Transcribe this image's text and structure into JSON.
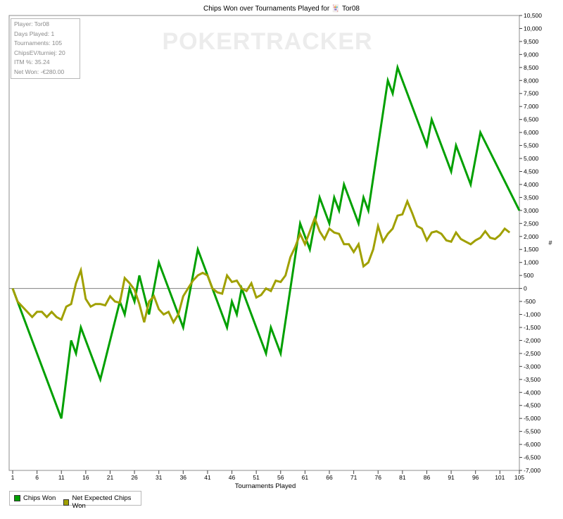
{
  "chart_data": {
    "type": "line",
    "title": "Chips Won over Tournaments Played for 🃏 Tor08",
    "xlabel": "Tournaments Played",
    "ylabel": "#",
    "xlim": [
      1,
      105
    ],
    "ylim": [
      -7000,
      10500
    ],
    "y_tick_step": 500,
    "x_ticks": [
      1,
      6,
      11,
      16,
      21,
      26,
      31,
      36,
      41,
      46,
      51,
      56,
      61,
      66,
      71,
      76,
      81,
      86,
      91,
      96,
      101,
      105
    ],
    "grid": false,
    "legend_position": "bottom-left",
    "watermark": "POKERTRACKER",
    "series": [
      {
        "name": "Chips Won",
        "color": "#00a000",
        "points": [
          [
            1,
            0
          ],
          [
            11,
            -5000
          ],
          [
            13,
            -2000
          ],
          [
            14,
            -2500
          ],
          [
            15,
            -1500
          ],
          [
            19,
            -3500
          ],
          [
            23,
            -500
          ],
          [
            24,
            -1000
          ],
          [
            25,
            0
          ],
          [
            26,
            -500
          ],
          [
            27,
            500
          ],
          [
            29,
            -1000
          ],
          [
            31,
            1000
          ],
          [
            36,
            -1500
          ],
          [
            39,
            1500
          ],
          [
            45,
            -1500
          ],
          [
            46,
            -500
          ],
          [
            47,
            -1000
          ],
          [
            48,
            0
          ],
          [
            53,
            -2500
          ],
          [
            54,
            -1500
          ],
          [
            56,
            -2500
          ],
          [
            60,
            2500
          ],
          [
            62,
            1500
          ],
          [
            64,
            3500
          ],
          [
            66,
            2500
          ],
          [
            67,
            3500
          ],
          [
            68,
            3000
          ],
          [
            69,
            4000
          ],
          [
            72,
            2500
          ],
          [
            73,
            3500
          ],
          [
            74,
            3000
          ],
          [
            78,
            8000
          ],
          [
            79,
            7500
          ],
          [
            80,
            8500
          ],
          [
            86,
            5500
          ],
          [
            87,
            6500
          ],
          [
            91,
            4500
          ],
          [
            92,
            5500
          ],
          [
            95,
            4000
          ],
          [
            97,
            6000
          ],
          [
            105,
            3000
          ]
        ]
      },
      {
        "name": "Net Expected Chips Won",
        "color": "#a0a000",
        "points": [
          [
            1,
            0
          ],
          [
            2,
            -500
          ],
          [
            5,
            -1100
          ],
          [
            6,
            -900
          ],
          [
            7,
            -900
          ],
          [
            8,
            -1100
          ],
          [
            9,
            -900
          ],
          [
            10,
            -1100
          ],
          [
            11,
            -1200
          ],
          [
            12,
            -700
          ],
          [
            13,
            -600
          ],
          [
            14,
            200
          ],
          [
            15,
            700
          ],
          [
            16,
            -400
          ],
          [
            17,
            -700
          ],
          [
            18,
            -600
          ],
          [
            19,
            -600
          ],
          [
            20,
            -650
          ],
          [
            21,
            -300
          ],
          [
            22,
            -500
          ],
          [
            23,
            -550
          ],
          [
            24,
            400
          ],
          [
            25,
            200
          ],
          [
            26,
            -50
          ],
          [
            27,
            -600
          ],
          [
            28,
            -1300
          ],
          [
            29,
            -500
          ],
          [
            30,
            -300
          ],
          [
            31,
            -800
          ],
          [
            32,
            -1000
          ],
          [
            33,
            -900
          ],
          [
            34,
            -1300
          ],
          [
            35,
            -1000
          ],
          [
            36,
            -300
          ],
          [
            37,
            0
          ],
          [
            38,
            300
          ],
          [
            39,
            500
          ],
          [
            40,
            600
          ],
          [
            41,
            500
          ],
          [
            42,
            0
          ],
          [
            43,
            -150
          ],
          [
            44,
            -200
          ],
          [
            45,
            500
          ],
          [
            46,
            250
          ],
          [
            47,
            300
          ],
          [
            48,
            0
          ],
          [
            49,
            -100
          ],
          [
            50,
            200
          ],
          [
            51,
            -350
          ],
          [
            52,
            -250
          ],
          [
            53,
            0
          ],
          [
            54,
            -100
          ],
          [
            55,
            300
          ],
          [
            56,
            250
          ],
          [
            57,
            500
          ],
          [
            58,
            1200
          ],
          [
            59,
            1600
          ],
          [
            60,
            2100
          ],
          [
            61,
            1700
          ],
          [
            62,
            2200
          ],
          [
            63,
            2700
          ],
          [
            64,
            2200
          ],
          [
            65,
            1900
          ],
          [
            66,
            2300
          ],
          [
            67,
            2150
          ],
          [
            68,
            2100
          ],
          [
            69,
            1700
          ],
          [
            70,
            1700
          ],
          [
            71,
            1400
          ],
          [
            72,
            1700
          ],
          [
            73,
            850
          ],
          [
            74,
            1000
          ],
          [
            75,
            1500
          ],
          [
            76,
            2400
          ],
          [
            77,
            1800
          ],
          [
            78,
            2100
          ],
          [
            79,
            2300
          ],
          [
            80,
            2800
          ],
          [
            81,
            2850
          ],
          [
            82,
            3350
          ],
          [
            83,
            2900
          ],
          [
            84,
            2400
          ],
          [
            85,
            2300
          ],
          [
            86,
            1850
          ],
          [
            87,
            2150
          ],
          [
            88,
            2200
          ],
          [
            89,
            2100
          ],
          [
            90,
            1850
          ],
          [
            91,
            1800
          ],
          [
            92,
            2150
          ],
          [
            93,
            1900
          ],
          [
            94,
            1800
          ],
          [
            95,
            1700
          ],
          [
            96,
            1850
          ],
          [
            97,
            1950
          ],
          [
            98,
            2200
          ],
          [
            99,
            1950
          ],
          [
            100,
            1900
          ],
          [
            101,
            2050
          ],
          [
            102,
            2300
          ],
          [
            103,
            2150
          ]
        ]
      }
    ]
  },
  "stats": {
    "player": "Player: Tor08",
    "days_played": "Days Played: 1",
    "tournaments": "Tournaments: 105",
    "chips_ev": "ChipsEV/turniej: 20",
    "itm": "ITM %: 35.24",
    "net_won": "Net Won: -€280.00"
  }
}
